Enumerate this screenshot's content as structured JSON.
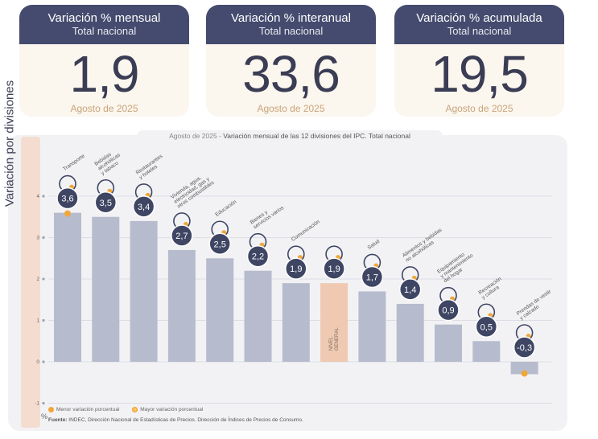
{
  "kpis": [
    {
      "title": "Variación % mensual",
      "subtitle": "Total nacional",
      "value": "1,9",
      "date": "Agosto de 2025"
    },
    {
      "title": "Variación % interanual",
      "subtitle": "Total nacional",
      "value": "33,6",
      "date": "Agosto de 2025"
    },
    {
      "title": "Variación % acumulada",
      "subtitle": "Total nacional",
      "value": "19,5",
      "date": "Agosto de 2025"
    }
  ],
  "chart_header": {
    "prefix": "Agosto de 2025 - ",
    "title": "Variación mensual de las 12 divisiones del IPC. Total nacional"
  },
  "side_label": "Variación por divisiones",
  "unit_label": "%",
  "legend": {
    "min": "Menor variación porcentual",
    "max": "Mayor variación porcentual"
  },
  "source": {
    "label": "Fuente:",
    "text": " INDEC, Dirección Nacional de Estadísticas de Precios. Dirección de Índices de Precios de Consumo."
  },
  "colors": {
    "bar": "#b6bccd",
    "general": "#efc9b1",
    "badge": "#3f4664",
    "accent_orange": "#f0a73a",
    "min_dot": "#f0a73a",
    "max_dot": "#f0a73a"
  },
  "chart_data": {
    "type": "bar",
    "ylim": [
      -1,
      4
    ],
    "yticks": [
      -1,
      0,
      1,
      2,
      3,
      4
    ],
    "grid": true,
    "categories": [
      "Transporte",
      "Bebidas alcohólicas y tabaco",
      "Restaurantes y hoteles",
      "Vivienda, agua, electricidad, gas y otros combustibles",
      "Educación",
      "Bienes y servicios varios",
      "Comunicación",
      "NIVEL GENERAL",
      "Salud",
      "Alimentos y bebidas no alcohólicas",
      "Equipamiento y mantenimiento del hogar",
      "Recreación y cultura",
      "Prendas de vestir y calzado"
    ],
    "values": [
      3.6,
      3.5,
      3.4,
      2.7,
      2.5,
      2.2,
      1.9,
      1.9,
      1.7,
      1.4,
      0.9,
      0.5,
      -0.3
    ],
    "value_labels": [
      "3,6",
      "3,5",
      "3,4",
      "2,7",
      "2,5",
      "2,2",
      "1,9",
      "1,9",
      "1,7",
      "1,4",
      "0,9",
      "0,5",
      "-0,3"
    ],
    "highlight_category": "NIVEL GENERAL",
    "label_lines": [
      [
        "Transporte"
      ],
      [
        "Bebidas",
        "alcohólicas",
        "y tabaco"
      ],
      [
        "Restaurantes",
        "y hoteles"
      ],
      [
        "Vivienda, agua,",
        "electricidad, gas y",
        "otros combustibles"
      ],
      [
        "Educación"
      ],
      [
        "Bienes y",
        "servicios varios"
      ],
      [
        "Comunicación"
      ],
      [
        "NIVEL",
        "GENERAL"
      ],
      [
        "Salud"
      ],
      [
        "Alimentos y bebidas",
        "no alcohólicas"
      ],
      [
        "Equipamiento",
        "y mantenimiento",
        "del hogar"
      ],
      [
        "Recreación",
        "y cultura"
      ],
      [
        "Prendas de vestir",
        "y calzado"
      ]
    ],
    "icons": [
      "car-icon",
      "wine-bottle-icon",
      "cutlery-icon",
      "lightbulb-icon",
      "notebook-icon",
      "scissors-icon",
      "phone-icon",
      "shopping-basket-icon",
      "first-aid-icon",
      "chicken-icon",
      "appliance-icon",
      "beach-umbrella-icon",
      "shirt-icon"
    ]
  }
}
